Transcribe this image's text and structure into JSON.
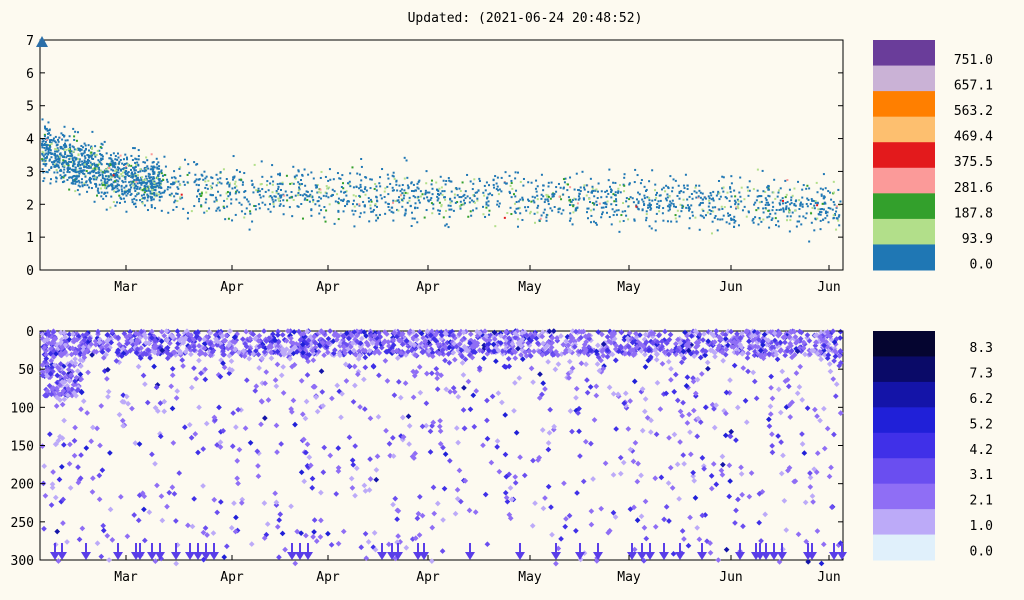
{
  "title": "Updated: (2021-06-24 20:48:52)",
  "chart_data": [
    {
      "type": "scatter",
      "x_ticks": [
        "Mar",
        "Apr",
        "Apr",
        "Apr",
        "May",
        "May",
        "Jun",
        "Jun"
      ],
      "y_ticks": [
        "0",
        "1",
        "2",
        "3",
        "4",
        "5",
        "6",
        "7"
      ],
      "ylim": [
        0,
        7
      ],
      "grid": false,
      "colorbar": {
        "colors": [
          "#1f77b4",
          "#b2df8a",
          "#33a02c",
          "#fb9a99",
          "#e31a1c",
          "#fdbf6f",
          "#ff7f00",
          "#cab2d6",
          "#6a3d9a"
        ],
        "labels": [
          "0.0",
          "93.9",
          "187.8",
          "281.6",
          "375.5",
          "469.4",
          "563.2",
          "657.1",
          "751.0"
        ]
      },
      "series_trend": [
        {
          "x": 0.0,
          "y": 3.7
        },
        {
          "x": 0.03,
          "y": 3.4
        },
        {
          "x": 0.06,
          "y": 3.1
        },
        {
          "x": 0.1,
          "y": 2.8
        },
        {
          "x": 0.15,
          "y": 2.6
        },
        {
          "x": 0.2,
          "y": 2.45
        },
        {
          "x": 0.3,
          "y": 2.35
        },
        {
          "x": 0.45,
          "y": 2.25
        },
        {
          "x": 0.6,
          "y": 2.15
        },
        {
          "x": 0.75,
          "y": 2.1
        },
        {
          "x": 0.9,
          "y": 2.05
        },
        {
          "x": 1.0,
          "y": 2.0
        }
      ]
    },
    {
      "type": "scatter",
      "x_ticks": [
        "Mar",
        "Apr",
        "Apr",
        "Apr",
        "May",
        "May",
        "Jun",
        "Jun"
      ],
      "y_ticks": [
        "0",
        "50",
        "100",
        "150",
        "200",
        "250",
        "300"
      ],
      "ylim": [
        300,
        0
      ],
      "grid": false,
      "colorbar": {
        "colors": [
          "#e0f0fb",
          "#bcaaf8",
          "#8f6ef5",
          "#6a4ef0",
          "#4030e8",
          "#2020d8",
          "#1414a8",
          "#0a0a68",
          "#050530"
        ],
        "labels": [
          "0.0",
          "1.0",
          "2.1",
          "3.1",
          "4.2",
          "5.2",
          "6.2",
          "7.3",
          "8.3"
        ]
      }
    }
  ]
}
